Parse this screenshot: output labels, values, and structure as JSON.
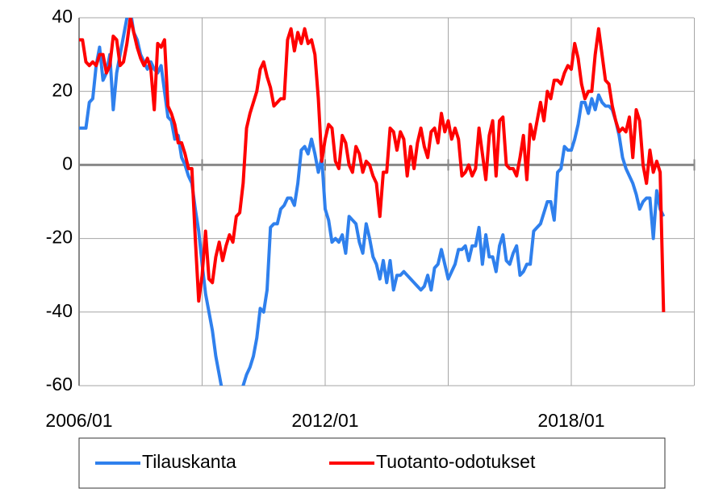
{
  "chart_data": {
    "type": "line",
    "categories": [
      "2006/01",
      null,
      null,
      null,
      null,
      null,
      null,
      null,
      null,
      null,
      null,
      null,
      null,
      null,
      null,
      null,
      null,
      null,
      null,
      null,
      null,
      null,
      null,
      null,
      null,
      null,
      null,
      null,
      null,
      null,
      null,
      null,
      null,
      null,
      null,
      null,
      null,
      null,
      null,
      null,
      null,
      null,
      null,
      null,
      null,
      null,
      null,
      null,
      null,
      null,
      null,
      null,
      null,
      null,
      null,
      null,
      null,
      null,
      null,
      null,
      null,
      null,
      null,
      null,
      null,
      null,
      null,
      null,
      null,
      null,
      null,
      null,
      "2012/01",
      null,
      null,
      null,
      null,
      null,
      null,
      null,
      null,
      null,
      null,
      null,
      null,
      null,
      null,
      null,
      null,
      null,
      null,
      null,
      null,
      null,
      null,
      null,
      null,
      null,
      null,
      null,
      null,
      null,
      null,
      null,
      null,
      null,
      null,
      null,
      null,
      null,
      null,
      null,
      null,
      null,
      null,
      null,
      null,
      null,
      null,
      null,
      null,
      null,
      null,
      null,
      null,
      null,
      null,
      null,
      null,
      null,
      null,
      null,
      null,
      null,
      null,
      null,
      null,
      null,
      null,
      null,
      null,
      null,
      null,
      null,
      "2018/01",
      null,
      null,
      null,
      null,
      null,
      null,
      null,
      null,
      null,
      null,
      null,
      null,
      null,
      null,
      null,
      null,
      null,
      null,
      null,
      null,
      null,
      null,
      null,
      null,
      null,
      null,
      null
    ],
    "series": [
      {
        "name": "Tilauskanta",
        "color": "#2f80ed",
        "values": [
          10,
          10,
          10,
          17,
          18,
          27,
          32,
          23,
          25,
          30,
          15,
          25,
          30,
          35,
          40,
          42,
          36,
          34,
          30,
          28,
          26,
          28,
          26,
          25,
          27,
          20,
          13,
          12,
          7,
          8,
          2,
          0,
          -3,
          -5,
          -12,
          -18,
          -27,
          -35,
          -40,
          -45,
          -52,
          -57,
          -62,
          -65,
          -67,
          -68,
          -67,
          -64,
          -60,
          -57,
          -55,
          -52,
          -47,
          -39,
          -40,
          -34,
          -17,
          -16,
          -16,
          -12,
          -11,
          -9,
          -9,
          -11,
          -5,
          4,
          5,
          3,
          7,
          3,
          -2,
          2,
          -12,
          -15,
          -21,
          -20,
          -21,
          -19,
          -24,
          -14,
          -15,
          -16,
          -21,
          -24,
          -16,
          -20,
          -25,
          -27,
          -31,
          -26,
          -32,
          -26,
          -34,
          -30,
          -30,
          -29,
          -30,
          -31,
          -32,
          -33,
          -34,
          -33,
          -30,
          -34,
          -28,
          -27,
          -23,
          -27,
          -31,
          -29,
          -27,
          -23,
          -23,
          -22,
          -26,
          -22,
          -22,
          -17,
          -27,
          -19,
          -25,
          -25,
          -29,
          -22,
          -19,
          -26,
          -27,
          -24,
          -22,
          -30,
          -29,
          -27,
          -27,
          -18,
          -17,
          -16,
          -13,
          -10,
          -10,
          -15,
          -2,
          -1,
          5,
          4,
          4,
          7,
          11,
          17,
          17,
          14,
          18,
          15,
          19,
          17,
          16,
          16,
          15,
          12,
          8,
          2,
          -1,
          -3,
          -5,
          -8,
          -12,
          -10,
          -9,
          -9,
          -20,
          -7,
          -12,
          -14
        ]
      },
      {
        "name": "Tuotanto-odotukset",
        "color": "#ff0000",
        "values": [
          34,
          34,
          28,
          27,
          28,
          27,
          30,
          30,
          25,
          27,
          35,
          34,
          27,
          28,
          33,
          40,
          36,
          32,
          29,
          27,
          29,
          26,
          15,
          33,
          32,
          34,
          16,
          14,
          11,
          6,
          6,
          3,
          -1,
          -1,
          -20,
          -37,
          -30,
          -18,
          -31,
          -32,
          -25,
          -21,
          -26,
          -22,
          -19,
          -21,
          -14,
          -13,
          -5,
          10,
          14,
          17,
          20,
          26,
          28,
          24,
          21,
          16,
          17,
          18,
          18,
          34,
          37,
          31,
          36,
          33,
          37,
          33,
          34,
          30,
          18,
          1,
          7,
          11,
          10,
          1,
          -1,
          8,
          6,
          0,
          -2,
          5,
          3,
          -2,
          1,
          0,
          -3,
          -5,
          -14,
          -2,
          -2,
          10,
          9,
          4,
          9,
          7,
          -3,
          5,
          -1,
          6,
          10,
          5,
          2,
          9,
          10,
          6,
          14,
          9,
          12,
          7,
          10,
          7,
          -3,
          -2,
          0,
          -3,
          -1,
          10,
          3,
          -4,
          8,
          12,
          -3,
          12,
          13,
          0,
          -1,
          -1,
          -3,
          2,
          8,
          -4,
          11,
          7,
          12,
          17,
          12,
          20,
          18,
          23,
          23,
          22,
          25,
          27,
          26,
          33,
          29,
          22,
          18,
          20,
          20,
          30,
          37,
          30,
          23,
          22,
          16,
          12,
          9,
          10,
          9,
          13,
          2,
          15,
          12,
          0,
          -5,
          4,
          -2,
          1,
          -2,
          -40
        ]
      }
    ],
    "ylim": [
      -60,
      40
    ],
    "yticks": [
      -60,
      -40,
      -20,
      0,
      20,
      40
    ],
    "grid": true,
    "legend": "bottom"
  }
}
